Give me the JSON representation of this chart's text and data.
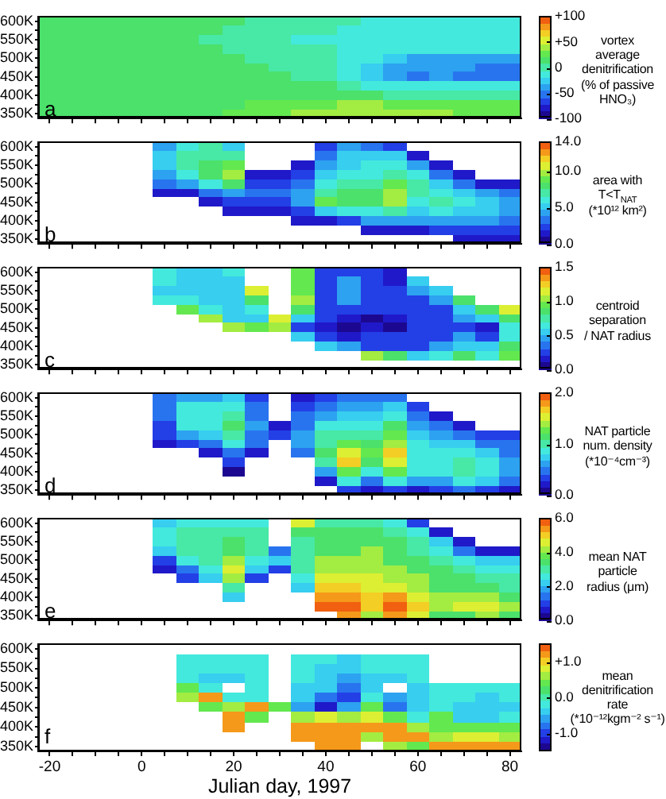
{
  "chart_data": [
    {
      "type": "heatmap",
      "title": "a",
      "categories": [
        "-20",
        null,
        null,
        null,
        "0",
        null,
        null,
        null,
        "20",
        null,
        null,
        null,
        "40",
        null,
        null,
        null,
        "60",
        null,
        null,
        null,
        "80"
      ],
      "y_categories": [
        "600K",
        null,
        "550K",
        null,
        "500K",
        null,
        "450K",
        null,
        "400K",
        null,
        "350K"
      ],
      "tick_labels": "y",
      "clim": [
        -100,
        100
      ],
      "cticks": [
        {
          "value": -100,
          "label": "-100"
        },
        {
          "value": -50,
          "label": "-50"
        },
        0,
        {
          "value": 50,
          "label": "+50"
        },
        {
          "value": 100,
          "label": "+100"
        }
      ],
      "clabel": "vortex\naverage\ndenitrification\n(% of passive\nHNO₃)",
      "cells": [
        [
          10,
          10,
          10,
          10,
          10,
          15,
          15,
          15,
          10,
          5,
          5,
          0,
          -5,
          -5,
          -10,
          -10,
          -10,
          -10,
          -10,
          -10,
          -10
        ],
        [
          10,
          10,
          15,
          15,
          15,
          15,
          15,
          10,
          5,
          5,
          0,
          -5,
          -5,
          -10,
          -10,
          -10,
          -10,
          -10,
          -10,
          -10,
          -10
        ],
        [
          15,
          15,
          15,
          15,
          10,
          10,
          10,
          5,
          5,
          0,
          -5,
          -10,
          -10,
          -10,
          -10,
          -10,
          -10,
          -10,
          -10,
          -10,
          -10
        ],
        [
          15,
          15,
          15,
          15,
          15,
          10,
          10,
          10,
          5,
          5,
          0,
          -5,
          -5,
          -10,
          -15,
          -20,
          -20,
          -20,
          -20,
          -20,
          -20
        ],
        [
          15,
          15,
          15,
          15,
          15,
          15,
          15,
          10,
          10,
          5,
          5,
          0,
          -5,
          -10,
          -20,
          -30,
          -35,
          -35,
          -35,
          -35,
          -35
        ],
        [
          15,
          15,
          15,
          15,
          15,
          15,
          15,
          15,
          10,
          10,
          5,
          5,
          0,
          -15,
          -30,
          -35,
          -35,
          -40,
          -45,
          -50,
          -50
        ],
        [
          15,
          15,
          15,
          15,
          15,
          15,
          15,
          15,
          15,
          10,
          10,
          5,
          5,
          -10,
          -25,
          -35,
          -50,
          -35,
          -50,
          -50,
          -50
        ],
        [
          15,
          15,
          15,
          15,
          15,
          15,
          15,
          15,
          15,
          15,
          10,
          10,
          10,
          0,
          -10,
          -20,
          -20,
          -20,
          -20,
          -20,
          -20
        ],
        [
          15,
          15,
          15,
          15,
          15,
          15,
          15,
          15,
          15,
          15,
          15,
          15,
          15,
          10,
          10,
          5,
          5,
          5,
          5,
          5,
          5
        ],
        [
          15,
          15,
          15,
          15,
          15,
          15,
          15,
          15,
          15,
          20,
          20,
          25,
          30,
          35,
          35,
          30,
          25,
          20,
          20,
          20,
          20
        ],
        [
          15,
          15,
          15,
          15,
          15,
          15,
          15,
          15,
          20,
          25,
          30,
          35,
          40,
          45,
          45,
          45,
          40,
          35,
          30,
          25,
          25
        ]
      ]
    },
    {
      "type": "heatmap",
      "title": "b",
      "categories": [
        "-20",
        null,
        null,
        null,
        "0",
        null,
        null,
        null,
        "20",
        null,
        null,
        null,
        "40",
        null,
        null,
        null,
        "60",
        null,
        null,
        null,
        "80"
      ],
      "y_categories": [
        "600K",
        null,
        "550K",
        null,
        "500K",
        null,
        "450K",
        null,
        "400K",
        null,
        "350K"
      ],
      "tick_labels": "y",
      "clim": [
        0,
        14
      ],
      "cticks": [
        {
          "value": 0,
          "label": "0.0"
        },
        {
          "value": 5,
          "label": "5.0"
        },
        {
          "value": 10,
          "label": "10.0"
        },
        {
          "value": 14,
          "label": "14.0"
        }
      ],
      "clabel": "area with\nT<T$_{NAT}$\n(*10¹² km²)",
      "cells": [
        [
          null,
          null,
          null,
          null,
          null,
          4,
          6,
          7,
          5,
          null,
          null,
          null,
          2,
          4,
          3,
          2,
          null,
          null,
          null,
          null,
          null
        ],
        [
          null,
          null,
          null,
          null,
          null,
          5,
          7,
          7,
          7,
          null,
          null,
          null,
          3,
          5,
          5,
          5,
          1,
          null,
          null,
          null,
          null
        ],
        [
          null,
          null,
          null,
          null,
          null,
          5,
          7,
          8,
          9,
          null,
          null,
          1,
          4,
          5,
          6,
          6,
          4,
          1,
          null,
          null,
          null
        ],
        [
          null,
          null,
          null,
          null,
          null,
          4,
          6,
          8,
          10,
          1,
          1,
          2,
          5,
          6,
          6,
          7,
          6,
          3,
          1,
          null,
          null
        ],
        [
          null,
          null,
          null,
          null,
          null,
          3,
          4,
          6,
          8,
          2,
          2,
          3,
          6,
          7,
          7,
          9,
          7,
          5,
          3,
          1.5,
          1.5
        ],
        [
          null,
          null,
          null,
          null,
          null,
          1,
          1,
          3,
          4,
          3,
          3,
          4,
          7,
          8,
          8,
          10,
          7,
          6,
          5,
          4,
          3
        ],
        [
          null,
          null,
          null,
          null,
          null,
          null,
          null,
          1,
          2,
          2,
          2.5,
          4,
          9,
          8,
          8,
          10,
          6,
          7,
          6,
          5,
          4
        ],
        [
          null,
          null,
          null,
          null,
          null,
          null,
          null,
          null,
          1,
          1,
          1,
          2,
          5,
          6,
          6,
          7,
          5,
          6,
          5,
          5,
          4
        ],
        [
          null,
          null,
          null,
          null,
          null,
          null,
          null,
          null,
          null,
          null,
          null,
          1,
          1.5,
          2,
          4,
          4,
          4,
          4,
          4,
          4,
          3
        ],
        [
          null,
          null,
          null,
          null,
          null,
          null,
          null,
          null,
          null,
          null,
          null,
          null,
          null,
          null,
          1,
          1.5,
          1.5,
          2,
          2.5,
          2,
          2
        ],
        [
          null,
          null,
          null,
          null,
          null,
          null,
          null,
          null,
          null,
          null,
          null,
          null,
          null,
          null,
          null,
          null,
          null,
          null,
          1,
          1,
          1
        ]
      ]
    },
    {
      "type": "heatmap",
      "title": "c",
      "categories": [
        "-20",
        null,
        null,
        null,
        "0",
        null,
        null,
        null,
        "20",
        null,
        null,
        null,
        "40",
        null,
        null,
        null,
        "60",
        null,
        null,
        null,
        "80"
      ],
      "y_categories": [
        "600K",
        null,
        "550K",
        null,
        "500K",
        null,
        "450K",
        null,
        "400K",
        null,
        "350K"
      ],
      "tick_labels": "y",
      "clim": [
        0,
        1.5
      ],
      "cticks": [
        {
          "value": 0,
          "label": "0.0"
        },
        0.5,
        {
          "value": 1,
          "label": "1.0"
        },
        1.5
      ],
      "clabel": "centroid\nseparation\n/ NAT radius",
      "cells": [
        [
          null,
          null,
          null,
          null,
          null,
          0.7,
          0.6,
          0.6,
          0.7,
          null,
          null,
          0.9,
          0.3,
          0.3,
          0.2,
          0.1,
          null,
          null,
          null,
          null,
          null
        ],
        [
          null,
          null,
          null,
          null,
          null,
          0.7,
          0.6,
          0.5,
          0.6,
          null,
          null,
          0.9,
          0.3,
          0.4,
          0.2,
          0.1,
          0.5,
          null,
          null,
          null,
          null
        ],
        [
          null,
          null,
          null,
          null,
          null,
          0.6,
          0.6,
          0.5,
          0.6,
          1.2,
          null,
          0.9,
          0.3,
          0.4,
          0.3,
          0.3,
          0.4,
          0.6,
          null,
          null,
          null
        ],
        [
          null,
          null,
          null,
          null,
          null,
          0.7,
          0.7,
          0.6,
          0.5,
          0.8,
          null,
          1.0,
          0.2,
          0.4,
          0.2,
          0.3,
          0.3,
          0.4,
          0.8,
          null,
          null
        ],
        [
          null,
          null,
          null,
          null,
          null,
          null,
          0.9,
          0.7,
          0.5,
          0.7,
          null,
          0.8,
          0.3,
          0.3,
          0.2,
          0.2,
          0.3,
          0.3,
          0.5,
          0.8,
          1.1
        ],
        [
          null,
          null,
          null,
          null,
          null,
          null,
          null,
          1.0,
          0.5,
          0.6,
          1.2,
          0.6,
          0.2,
          0.1,
          0,
          0.1,
          0.2,
          0.3,
          0.4,
          0.6,
          0.8
        ],
        [
          null,
          null,
          null,
          null,
          null,
          null,
          null,
          null,
          1.0,
          0.9,
          1.0,
          0.3,
          0.1,
          0,
          0.1,
          0,
          0.2,
          0.2,
          0.2,
          0.1,
          0.7
        ],
        [
          null,
          null,
          null,
          null,
          null,
          null,
          null,
          null,
          null,
          null,
          null,
          0.5,
          0.2,
          0.1,
          0.2,
          0.2,
          0.3,
          0.3,
          0.4,
          0.3,
          0.7
        ],
        [
          null,
          null,
          null,
          null,
          null,
          null,
          null,
          null,
          null,
          null,
          null,
          null,
          0.6,
          0.4,
          0.3,
          0.3,
          0.3,
          0.4,
          0.5,
          0.5,
          0.8
        ],
        [
          null,
          null,
          null,
          null,
          null,
          null,
          null,
          null,
          null,
          null,
          null,
          null,
          null,
          null,
          1.0,
          0.8,
          0.6,
          0.7,
          0.8,
          0.7,
          0.9
        ],
        [
          null,
          null,
          null,
          null,
          null,
          null,
          null,
          null,
          null,
          null,
          null,
          null,
          null,
          null,
          null,
          null,
          null,
          null,
          null,
          null,
          null
        ]
      ]
    },
    {
      "type": "heatmap",
      "title": "d",
      "categories": [
        "-20",
        null,
        null,
        null,
        "0",
        null,
        null,
        null,
        "20",
        null,
        null,
        null,
        "40",
        null,
        null,
        null,
        "60",
        null,
        null,
        null,
        "80"
      ],
      "y_categories": [
        "600K",
        null,
        "550K",
        null,
        "500K",
        null,
        "450K",
        null,
        "400K",
        null,
        "350K"
      ],
      "tick_labels": "y",
      "clim": [
        0,
        2
      ],
      "cticks": [
        {
          "value": 0,
          "label": "0.0"
        },
        {
          "value": 1,
          "label": "1.0"
        },
        {
          "value": 2,
          "label": "2.0"
        }
      ],
      "clabel": "NAT particle\nnum. density\n(*10⁻⁴cm⁻³)",
      "cells": [
        [
          null,
          null,
          null,
          null,
          null,
          0.5,
          0.6,
          0.6,
          0.7,
          0.3,
          null,
          0.2,
          0.3,
          0.4,
          0.5,
          0.4,
          null,
          null,
          null,
          null,
          null
        ],
        [
          null,
          null,
          null,
          null,
          null,
          0.5,
          0.8,
          0.8,
          0.9,
          0.4,
          null,
          0.3,
          0.4,
          0.6,
          0.6,
          0.7,
          0.3,
          null,
          null,
          null,
          null
        ],
        [
          null,
          null,
          null,
          null,
          null,
          0.4,
          0.9,
          0.8,
          1.0,
          0.5,
          null,
          0.4,
          0.6,
          0.7,
          0.7,
          0.9,
          0.5,
          0.2,
          null,
          null,
          null
        ],
        [
          null,
          null,
          null,
          null,
          null,
          0.3,
          0.8,
          0.8,
          1.1,
          0.6,
          0.2,
          0.5,
          0.8,
          0.8,
          0.9,
          1.1,
          0.6,
          0.4,
          0.2,
          null,
          null
        ],
        [
          null,
          null,
          null,
          null,
          null,
          0.3,
          0.6,
          0.7,
          1.0,
          0.5,
          0.3,
          0.6,
          1.0,
          1.0,
          1.0,
          1.2,
          0.7,
          0.6,
          0.5,
          0.3,
          0.3
        ],
        [
          null,
          null,
          null,
          null,
          null,
          0.2,
          0.3,
          0.5,
          0.8,
          0.4,
          null,
          0.6,
          1.0,
          1.2,
          1.1,
          1.4,
          0.8,
          0.7,
          0.7,
          0.5,
          0.4
        ],
        [
          null,
          null,
          null,
          null,
          null,
          null,
          null,
          0.2,
          0.5,
          0.2,
          null,
          0.4,
          1.1,
          1.5,
          1.2,
          1.7,
          0.9,
          0.9,
          0.9,
          0.7,
          0.5
        ],
        [
          null,
          null,
          null,
          null,
          null,
          null,
          null,
          null,
          0.3,
          null,
          null,
          null,
          1.0,
          1.6,
          1.1,
          1.5,
          0.9,
          0.9,
          1.0,
          0.9,
          0.6
        ],
        [
          null,
          null,
          null,
          null,
          null,
          null,
          null,
          null,
          0.1,
          null,
          null,
          null,
          0.6,
          1.3,
          0.9,
          1.2,
          0.8,
          0.8,
          1.0,
          0.9,
          0.6
        ],
        [
          null,
          null,
          null,
          null,
          null,
          null,
          null,
          null,
          null,
          null,
          null,
          null,
          0.2,
          0.8,
          0.5,
          0.8,
          0.6,
          0.6,
          0.8,
          0.7,
          0.5
        ],
        [
          null,
          null,
          null,
          null,
          null,
          null,
          null,
          null,
          null,
          null,
          null,
          null,
          null,
          0.3,
          0.2,
          0.3,
          0.2,
          0.3,
          0.4,
          0.3,
          0.2
        ]
      ]
    },
    {
      "type": "heatmap",
      "title": "e",
      "categories": [
        "-20",
        null,
        null,
        null,
        "0",
        null,
        null,
        null,
        "20",
        null,
        null,
        null,
        "40",
        null,
        null,
        null,
        "60",
        null,
        null,
        null,
        "80"
      ],
      "y_categories": [
        "600K",
        null,
        "550K",
        null,
        "500K",
        null,
        "450K",
        null,
        "400K",
        null,
        "350K"
      ],
      "tick_labels": "y",
      "clim": [
        0,
        6
      ],
      "cticks": [
        {
          "value": 0,
          "label": "0.0"
        },
        {
          "value": 2,
          "label": "2.0"
        },
        {
          "value": 4,
          "label": "4.0"
        },
        {
          "value": 6,
          "label": "6.0"
        }
      ],
      "clabel": "mean NAT\nparticle\nradius (μm)",
      "cells": [
        [
          null,
          null,
          null,
          null,
          null,
          2.0,
          2.5,
          2.5,
          2.5,
          2.5,
          null,
          4.5,
          3.0,
          3.0,
          3.0,
          2.5,
          1.0,
          null,
          null,
          null,
          null
        ],
        [
          null,
          null,
          null,
          null,
          null,
          2.5,
          3.0,
          3.0,
          3.0,
          3.0,
          null,
          3.5,
          3.5,
          3.5,
          3.5,
          3.0,
          2.5,
          0.5,
          null,
          null,
          null
        ],
        [
          null,
          null,
          null,
          null,
          null,
          2.5,
          3.0,
          3.0,
          3.5,
          3.0,
          null,
          3.0,
          3.5,
          3.5,
          3.5,
          3.5,
          3.0,
          2.0,
          0.5,
          null,
          null
        ],
        [
          null,
          null,
          null,
          null,
          null,
          2.0,
          3.0,
          3.0,
          3.5,
          3.0,
          1.5,
          3.0,
          3.5,
          3.5,
          4.0,
          3.5,
          3.0,
          2.5,
          1.5,
          0.5,
          0.5
        ],
        [
          null,
          null,
          null,
          null,
          null,
          1.0,
          2.5,
          3.0,
          4.0,
          2.5,
          2.0,
          3.0,
          4.0,
          4.0,
          4.0,
          3.5,
          3.5,
          3.0,
          2.5,
          2.0,
          2.0
        ],
        [
          null,
          null,
          null,
          null,
          null,
          0.5,
          1.5,
          2.5,
          4.5,
          2.0,
          1.0,
          3.0,
          4.0,
          4.0,
          4.0,
          4.0,
          3.5,
          3.5,
          3.0,
          2.5,
          2.5
        ],
        [
          null,
          null,
          null,
          null,
          null,
          null,
          1.0,
          2.0,
          4.0,
          1.0,
          null,
          2.5,
          4.5,
          4.5,
          4.5,
          4.0,
          4.0,
          3.5,
          3.5,
          3.0,
          3.0
        ],
        [
          null,
          null,
          null,
          null,
          null,
          null,
          null,
          null,
          3.0,
          null,
          null,
          2.0,
          5.0,
          5.0,
          4.5,
          4.5,
          4.0,
          3.5,
          3.5,
          3.5,
          3.0
        ],
        [
          null,
          null,
          null,
          null,
          null,
          null,
          null,
          null,
          2.0,
          null,
          null,
          null,
          5.5,
          5.5,
          5.0,
          5.5,
          4.5,
          4.0,
          4.0,
          4.0,
          3.5
        ],
        [
          null,
          null,
          null,
          null,
          null,
          null,
          null,
          null,
          null,
          null,
          null,
          null,
          6.0,
          6.0,
          5.0,
          6.0,
          5.0,
          4.0,
          4.5,
          4.5,
          4.0
        ],
        [
          null,
          null,
          null,
          null,
          null,
          null,
          null,
          null,
          null,
          null,
          null,
          null,
          null,
          5.5,
          4.0,
          5.5,
          4.5,
          3.5,
          3.5,
          4.0,
          3.5
        ]
      ]
    },
    {
      "type": "heatmap",
      "title": "f",
      "categories": [
        "-20",
        null,
        null,
        null,
        "0",
        null,
        null,
        null,
        "20",
        null,
        null,
        null,
        "40",
        null,
        null,
        null,
        "60",
        null,
        null,
        null,
        "80"
      ],
      "y_categories": [
        "600K",
        null,
        "550K",
        null,
        "500K",
        null,
        "450K",
        null,
        "400K",
        null,
        "350K"
      ],
      "xlabel": "Julian day, 1997",
      "clim": [
        -1.5,
        1.5
      ],
      "cticks": [
        {
          "value": -1,
          "label": "-1.0"
        },
        {
          "value": 0,
          "label": "0.0"
        },
        {
          "value": 1,
          "label": "+1.0"
        }
      ],
      "clabel": "mean\ndenitrification\nrate\n(*10⁻¹²kgm⁻² s⁻¹)",
      "cells": [
        [
          null,
          null,
          null,
          null,
          null,
          null,
          null,
          null,
          null,
          null,
          null,
          null,
          null,
          null,
          null,
          null,
          null,
          null,
          null,
          null,
          null
        ],
        [
          null,
          null,
          null,
          null,
          null,
          null,
          -0.2,
          -0.2,
          -0.2,
          -0.2,
          null,
          -0.2,
          -0.2,
          -0.3,
          -0.2,
          -0.2,
          -0.2,
          null,
          null,
          null,
          null
        ],
        [
          null,
          null,
          null,
          null,
          null,
          null,
          -0.2,
          -0.2,
          -0.2,
          -0.2,
          null,
          -0.2,
          -0.3,
          -0.4,
          -0.2,
          -0.2,
          -0.2,
          null,
          null,
          null,
          null
        ],
        [
          null,
          null,
          null,
          null,
          null,
          null,
          -0.2,
          -0.3,
          -0.3,
          -0.2,
          null,
          -0.2,
          -0.4,
          -0.6,
          -0.3,
          -0.3,
          -0.2,
          null,
          null,
          null,
          null
        ],
        [
          null,
          null,
          null,
          null,
          null,
          null,
          0.4,
          -0.2,
          null,
          -0.2,
          null,
          -0.3,
          -0.5,
          -0.8,
          -0.3,
          null,
          -0.3,
          -0.2,
          -0.2,
          -0.2,
          -0.2
        ],
        [
          null,
          null,
          null,
          null,
          null,
          null,
          0.5,
          1.2,
          -0.2,
          -0.2,
          null,
          -0.5,
          -0.8,
          -0.9,
          -0.2,
          -0.6,
          -0.4,
          -0.2,
          -0.2,
          -0.3,
          -0.2
        ],
        [
          null,
          null,
          null,
          null,
          null,
          null,
          null,
          0.4,
          0.5,
          1.2,
          0.4,
          -0.6,
          -1.1,
          -0.7,
          0.4,
          -0.8,
          -0.5,
          -0.2,
          -0.3,
          -0.4,
          -0.3
        ],
        [
          null,
          null,
          null,
          null,
          null,
          null,
          null,
          null,
          1.3,
          0.4,
          null,
          0.6,
          0.8,
          0.5,
          0.9,
          0.3,
          -0.2,
          0.3,
          -0.3,
          -0.4,
          -0.2
        ],
        [
          null,
          null,
          null,
          null,
          null,
          null,
          null,
          null,
          1.2,
          null,
          null,
          1.3,
          1.3,
          1.3,
          1.3,
          1.2,
          0.5,
          0.4,
          0.3,
          0.4,
          0.3
        ],
        [
          null,
          null,
          null,
          null,
          null,
          null,
          null,
          null,
          null,
          null,
          null,
          1.3,
          1.3,
          1.3,
          0.5,
          1.3,
          1.3,
          0.6,
          0.7,
          0.8,
          0.6
        ],
        [
          null,
          null,
          null,
          null,
          null,
          null,
          null,
          null,
          null,
          null,
          null,
          null,
          1.3,
          1.3,
          null,
          0.5,
          0.4,
          1.3,
          1.3,
          1.3,
          1.2
        ]
      ]
    }
  ]
}
